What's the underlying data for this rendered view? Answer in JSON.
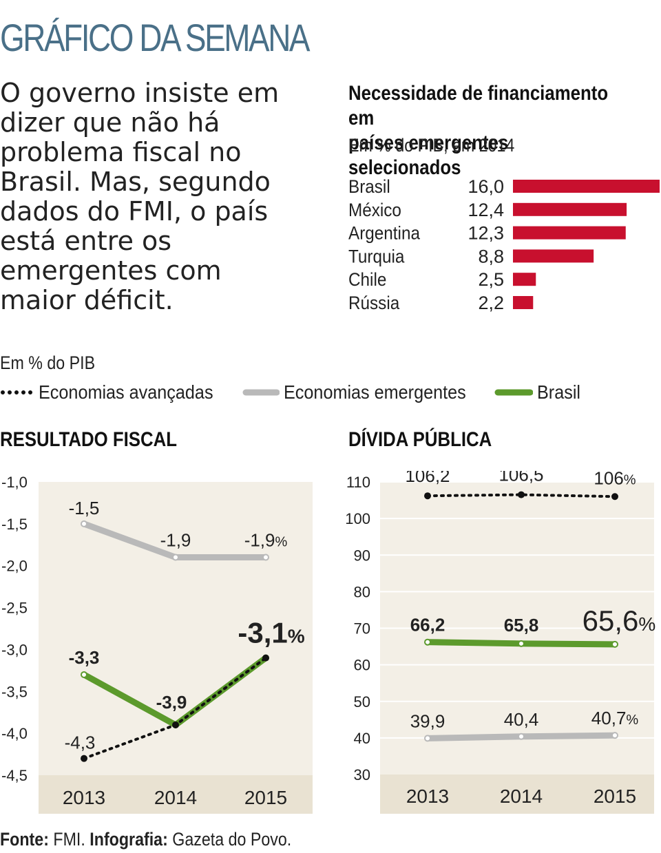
{
  "header": {
    "kicker": "GRÁFICO DA SEMANA",
    "lead": "O governo insiste em\ndizer que não há\nproblema fiscal no\nBrasil. Mas, segundo\ndados do FMI, o país\nestá entre os\nemergentes com\nmaior déficit."
  },
  "colors": {
    "bar": "#c8102e",
    "advanced": "#111111",
    "emerging": "#b9b9b9",
    "brasil": "#5c9a2c",
    "plot_bg": "#f3efe6",
    "axis_band": "#e9e2d2",
    "kicker": "#4a7088"
  },
  "legend": {
    "unit": "Em % do PIB",
    "items": [
      {
        "label": "Economias avançadas",
        "style": "dotted-black"
      },
      {
        "label": "Economias emergentes",
        "style": "solid-gray"
      },
      {
        "label": "Brasil",
        "style": "solid-green"
      }
    ]
  },
  "footer": {
    "source_key": "Fonte:",
    "source_val": "FMI.",
    "credit_key": "Infografia:",
    "credit_val": "Gazeta do Povo."
  },
  "chart_data": [
    {
      "type": "bar",
      "title": "Necessidade de financiamento em\npaíses emergentes selecionados",
      "subtitle": "Em % do PIB, em 2014",
      "categories": [
        "Brasil",
        "México",
        "Argentina",
        "Turquia",
        "Chile",
        "Rússia"
      ],
      "values": [
        16.0,
        12.4,
        12.3,
        8.8,
        2.5,
        2.2
      ],
      "value_labels": [
        "16,0",
        "12,4",
        "12,3",
        "8,8",
        "2,5",
        "2,2"
      ],
      "orientation": "horizontal"
    },
    {
      "type": "line",
      "title": "RESULTADO FISCAL",
      "x": [
        "2013",
        "2014",
        "2015"
      ],
      "ylim": [
        -4.5,
        -1.0
      ],
      "yticks": [
        "-1,0",
        "-1,5",
        "-2,0",
        "-2,5",
        "-3,0",
        "-3,5",
        "-4,0",
        "-4,5"
      ],
      "ytick_values": [
        -1.0,
        -1.5,
        -2.0,
        -2.5,
        -3.0,
        -3.5,
        -4.0,
        -4.5
      ],
      "series": [
        {
          "name": "Economias avançadas",
          "values": [
            -4.3,
            -3.9,
            -3.1
          ],
          "labels": [
            "-4,3",
            "",
            ""
          ]
        },
        {
          "name": "Economias emergentes",
          "values": [
            -1.5,
            -1.9,
            -1.9
          ],
          "labels": [
            "-1,5",
            "-1,9",
            "-1,9"
          ]
        },
        {
          "name": "Brasil",
          "values": [
            -3.3,
            -3.9,
            -3.1
          ],
          "labels": [
            "-3,3",
            "-3,9",
            "-3,1"
          ]
        }
      ],
      "unit_suffix": "%"
    },
    {
      "type": "line",
      "title": "DÍVIDA PÚBLICA",
      "x": [
        "2013",
        "2014",
        "2015"
      ],
      "ylim": [
        30,
        110
      ],
      "yticks": [
        "110",
        "100",
        "90",
        "80",
        "70",
        "60",
        "50",
        "40",
        "30"
      ],
      "ytick_values": [
        110,
        100,
        90,
        80,
        70,
        60,
        50,
        40,
        30
      ],
      "series": [
        {
          "name": "Economias avançadas",
          "values": [
            106.2,
            106.5,
            106
          ],
          "labels": [
            "106,2",
            "106,5",
            "106"
          ]
        },
        {
          "name": "Economias emergentes",
          "values": [
            39.9,
            40.4,
            40.7
          ],
          "labels": [
            "39,9",
            "40,4",
            "40,7"
          ]
        },
        {
          "name": "Brasil",
          "values": [
            66.2,
            65.8,
            65.6
          ],
          "labels": [
            "66,2",
            "65,8",
            "65,6"
          ]
        }
      ],
      "unit_suffix": "%"
    }
  ]
}
